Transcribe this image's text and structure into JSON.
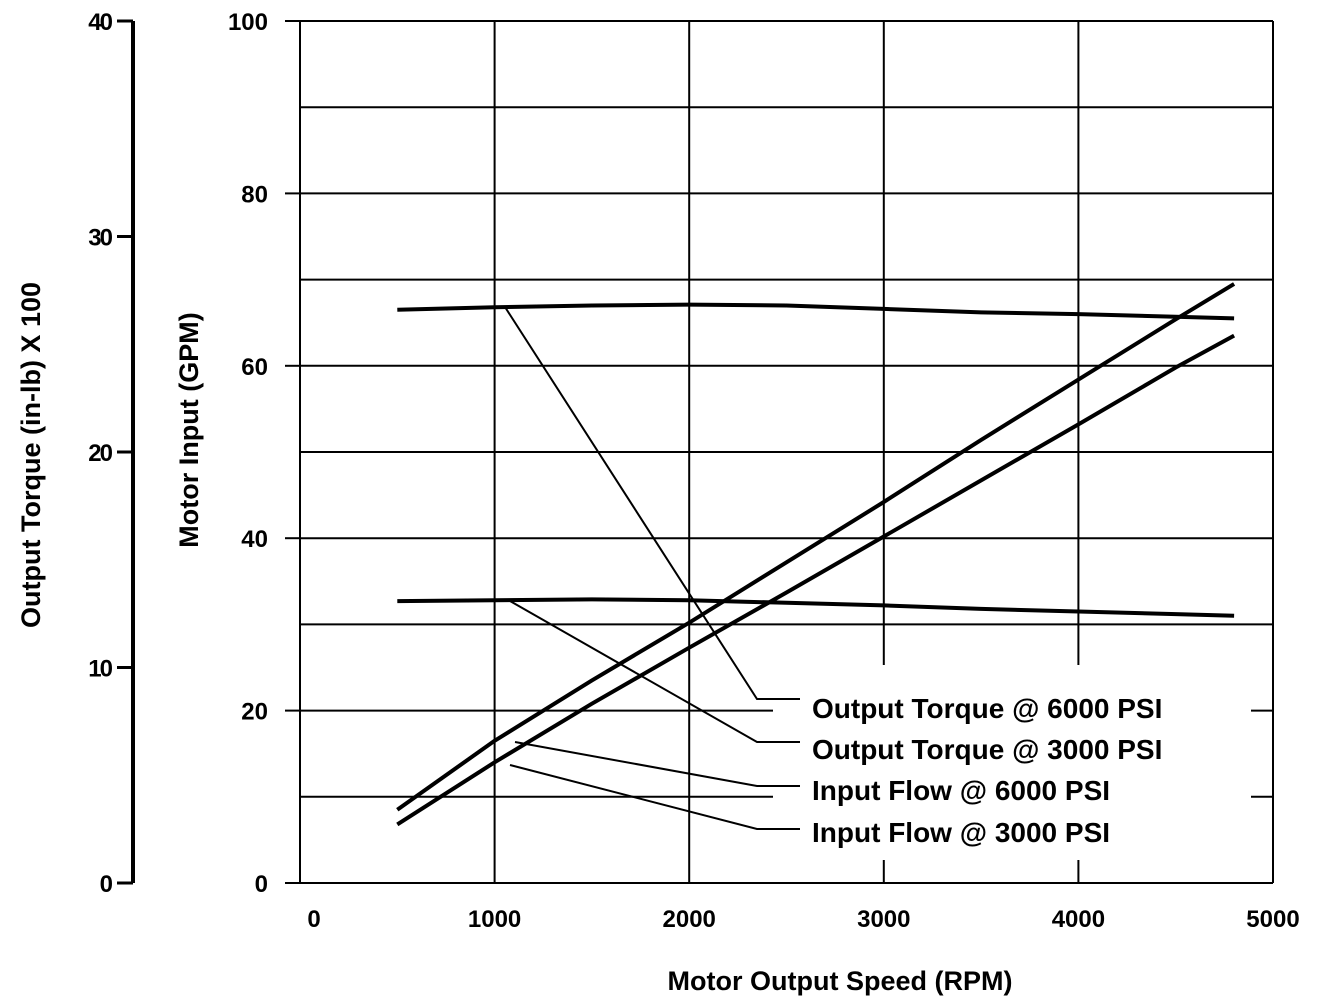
{
  "chart_data": {
    "type": "line",
    "xlabel": "Motor Output Speed (RPM)",
    "ylabel": "Motor Input (GPM)",
    "y2label": "Output Torque (in-lb) X 100",
    "xlim": [
      0,
      5000
    ],
    "ylim": [
      0,
      100
    ],
    "y2lim": [
      0,
      40
    ],
    "x_ticks": [
      "0",
      "1000",
      "2000",
      "3000",
      "4000",
      "5000"
    ],
    "y_ticks": [
      "0",
      "20",
      "40",
      "60",
      "80",
      "100"
    ],
    "y2_ticks": [
      "0",
      "10",
      "20",
      "30",
      "40"
    ],
    "grid": true,
    "series": [
      {
        "name": "Output Torque @ 6000 PSI",
        "axis": "left-torque",
        "x": [
          500,
          1000,
          1500,
          2000,
          2500,
          3000,
          3500,
          4000,
          4500,
          4800
        ],
        "y": [
          66.5,
          66.8,
          67.0,
          67.1,
          67.0,
          66.6,
          66.2,
          66.0,
          65.7,
          65.5
        ]
      },
      {
        "name": "Output Torque @ 3000 PSI",
        "axis": "left-torque",
        "x": [
          500,
          1000,
          1500,
          2000,
          2500,
          3000,
          3500,
          4000,
          4500,
          4800
        ],
        "y": [
          32.7,
          32.8,
          32.9,
          32.8,
          32.5,
          32.2,
          31.8,
          31.5,
          31.2,
          31.0
        ]
      },
      {
        "name": "Input Flow @ 6000 PSI",
        "axis": "left-gpm",
        "x": [
          500,
          1000,
          1500,
          2000,
          2500,
          3000,
          3500,
          4000,
          4500,
          4800
        ],
        "y": [
          8.5,
          16.5,
          23.5,
          30.2,
          37.2,
          44.2,
          51.4,
          58.4,
          65.4,
          69.5
        ]
      },
      {
        "name": "Input Flow @ 3000 PSI",
        "axis": "left-gpm",
        "x": [
          500,
          1000,
          1500,
          2000,
          2500,
          3000,
          3500,
          4000,
          4500,
          4800
        ],
        "y": [
          6.8,
          14.0,
          20.8,
          27.3,
          33.7,
          40.2,
          46.7,
          53.2,
          59.8,
          63.5
        ]
      }
    ],
    "legend": {
      "placement": "bottom-right",
      "entries": [
        "Output Torque @ 6000 PSI",
        "Output Torque @ 3000 PSI",
        "Input Flow @ 6000 PSI",
        "Input Flow @ 3000 PSI"
      ]
    }
  }
}
